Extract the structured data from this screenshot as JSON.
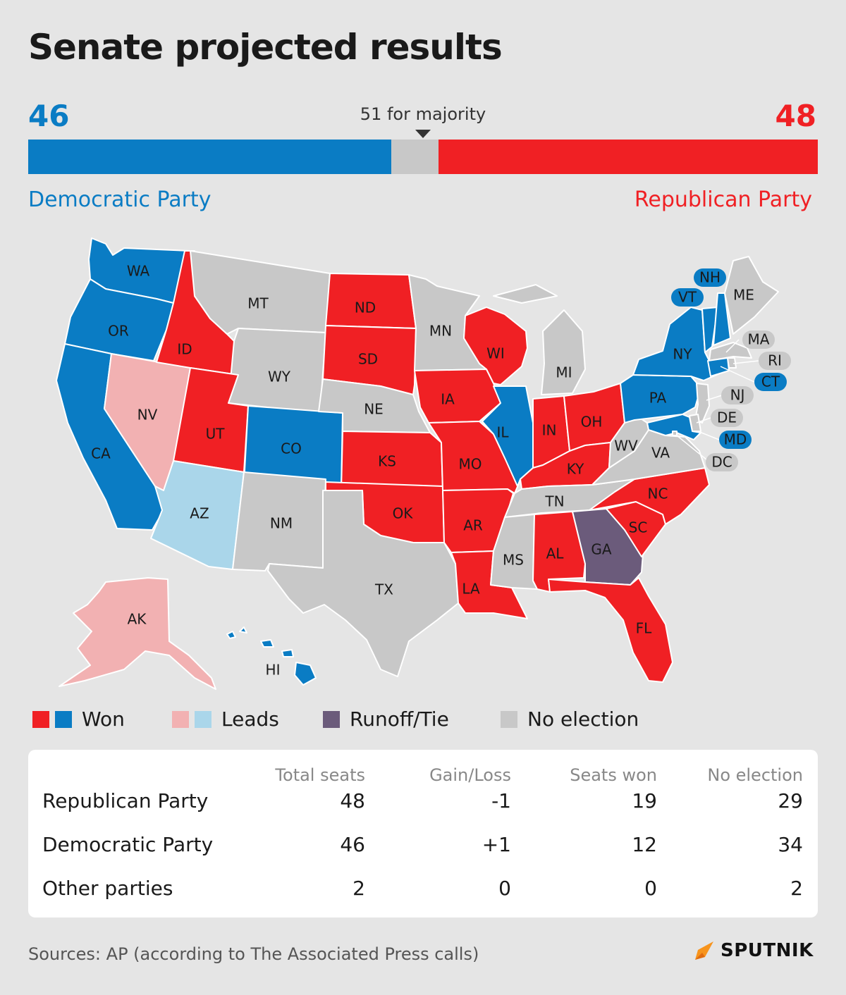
{
  "title": "Senate projected results",
  "tally": {
    "dem_seats": "46",
    "rep_seats": "48",
    "majority_label": "51 for majority",
    "dem_label": "Democratic Party",
    "rep_label": "Republican Party",
    "total_seats": 100,
    "majority": 51
  },
  "colors": {
    "dem_won": "#0a7cc4",
    "rep_won": "#f02024",
    "dem_leads": "#aad6ea",
    "rep_leads": "#f2b1b2",
    "runoff": "#6b5b7b",
    "no_election": "#c8c8c8"
  },
  "map": {
    "states": [
      {
        "abbr": "WA",
        "status": "dem_won"
      },
      {
        "abbr": "OR",
        "status": "dem_won"
      },
      {
        "abbr": "CA",
        "status": "dem_won"
      },
      {
        "abbr": "NV",
        "status": "rep_leads"
      },
      {
        "abbr": "ID",
        "status": "rep_won"
      },
      {
        "abbr": "MT",
        "status": "no_election"
      },
      {
        "abbr": "WY",
        "status": "no_election"
      },
      {
        "abbr": "UT",
        "status": "rep_won"
      },
      {
        "abbr": "AZ",
        "status": "dem_leads"
      },
      {
        "abbr": "CO",
        "status": "dem_won"
      },
      {
        "abbr": "NM",
        "status": "no_election"
      },
      {
        "abbr": "ND",
        "status": "rep_won"
      },
      {
        "abbr": "SD",
        "status": "rep_won"
      },
      {
        "abbr": "NE",
        "status": "no_election"
      },
      {
        "abbr": "KS",
        "status": "rep_won"
      },
      {
        "abbr": "OK",
        "status": "rep_won"
      },
      {
        "abbr": "TX",
        "status": "no_election"
      },
      {
        "abbr": "MN",
        "status": "no_election"
      },
      {
        "abbr": "IA",
        "status": "rep_won"
      },
      {
        "abbr": "MO",
        "status": "rep_won"
      },
      {
        "abbr": "AR",
        "status": "rep_won"
      },
      {
        "abbr": "LA",
        "status": "rep_won"
      },
      {
        "abbr": "WI",
        "status": "rep_won"
      },
      {
        "abbr": "IL",
        "status": "dem_won"
      },
      {
        "abbr": "MI",
        "status": "no_election"
      },
      {
        "abbr": "IN",
        "status": "rep_won"
      },
      {
        "abbr": "OH",
        "status": "rep_won"
      },
      {
        "abbr": "KY",
        "status": "rep_won"
      },
      {
        "abbr": "TN",
        "status": "no_election"
      },
      {
        "abbr": "MS",
        "status": "no_election"
      },
      {
        "abbr": "AL",
        "status": "rep_won"
      },
      {
        "abbr": "GA",
        "status": "runoff"
      },
      {
        "abbr": "FL",
        "status": "rep_won"
      },
      {
        "abbr": "SC",
        "status": "rep_won"
      },
      {
        "abbr": "NC",
        "status": "rep_won"
      },
      {
        "abbr": "VA",
        "status": "no_election"
      },
      {
        "abbr": "WV",
        "status": "no_election"
      },
      {
        "abbr": "PA",
        "status": "dem_won"
      },
      {
        "abbr": "NY",
        "status": "dem_won"
      },
      {
        "abbr": "VT",
        "status": "dem_won"
      },
      {
        "abbr": "NH",
        "status": "dem_won"
      },
      {
        "abbr": "ME",
        "status": "no_election"
      },
      {
        "abbr": "MA",
        "status": "no_election"
      },
      {
        "abbr": "RI",
        "status": "no_election"
      },
      {
        "abbr": "CT",
        "status": "dem_won"
      },
      {
        "abbr": "NJ",
        "status": "no_election"
      },
      {
        "abbr": "DE",
        "status": "no_election"
      },
      {
        "abbr": "MD",
        "status": "dem_won"
      },
      {
        "abbr": "DC",
        "status": "no_election"
      },
      {
        "abbr": "AK",
        "status": "rep_leads"
      },
      {
        "abbr": "HI",
        "status": "dem_won"
      }
    ]
  },
  "legend": {
    "won": "Won",
    "leads": "Leads",
    "runoff": "Runoff/Tie",
    "no_election": "No election"
  },
  "table": {
    "headers": [
      "Total seats",
      "Gain/Loss",
      "Seats won",
      "No election"
    ],
    "rows": [
      {
        "party": "Republican Party",
        "cells": [
          "48",
          "-1",
          "19",
          "29"
        ]
      },
      {
        "party": "Democratic Party",
        "cells": [
          "46",
          "+1",
          "12",
          "34"
        ]
      },
      {
        "party": "Other parties",
        "cells": [
          "2",
          "0",
          "0",
          "2"
        ]
      }
    ]
  },
  "source": "Sources: AP (according to The Associated Press calls)",
  "brand": "SPUTNIK"
}
